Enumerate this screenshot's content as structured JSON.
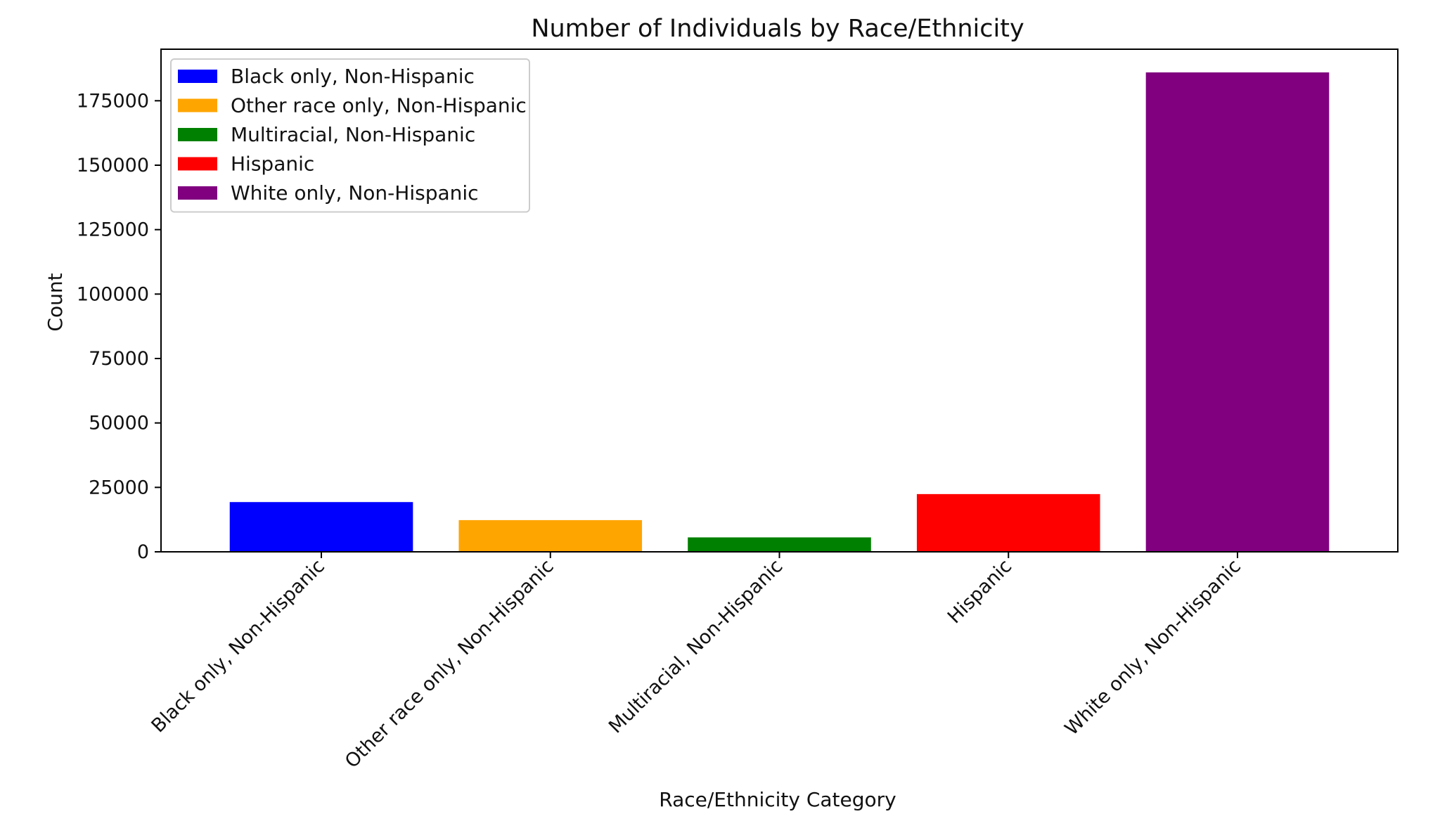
{
  "chart_data": {
    "type": "bar",
    "title": "Number of Individuals by Race/Ethnicity",
    "xlabel": "Race/Ethnicity Category",
    "ylabel": "Count",
    "categories": [
      "Black only, Non-Hispanic",
      "Other race only, Non-Hispanic",
      "Multiracial, Non-Hispanic",
      "Hispanic",
      "White only, Non-Hispanic"
    ],
    "values": [
      19300,
      12300,
      5600,
      22400,
      186000
    ],
    "colors": [
      "#0000ff",
      "#ffa500",
      "#008000",
      "#ff0000",
      "#800080"
    ],
    "ylim": [
      0,
      195000
    ],
    "yticks": [
      0,
      25000,
      50000,
      75000,
      100000,
      125000,
      150000,
      175000
    ],
    "grid": false,
    "legend": {
      "position": "upper-left",
      "entries": [
        "Black only, Non-Hispanic",
        "Other race only, Non-Hispanic",
        "Multiracial, Non-Hispanic",
        "Hispanic",
        "White only, Non-Hispanic"
      ]
    }
  }
}
